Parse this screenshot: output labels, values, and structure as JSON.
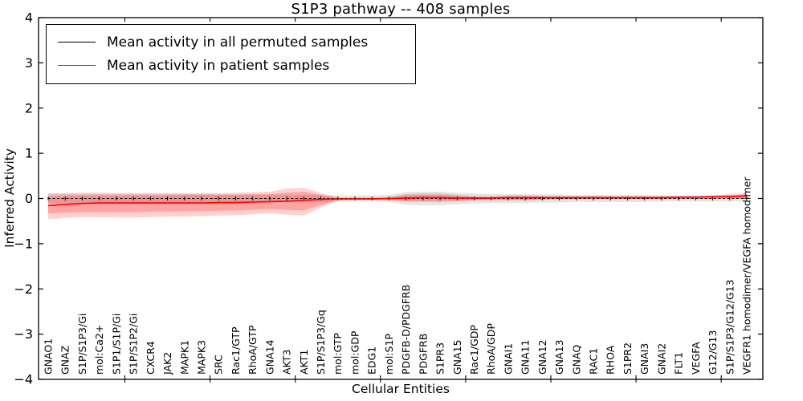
{
  "chart_data": {
    "type": "line",
    "title": "S1P3 pathway -- 408 samples",
    "xlabel": "Cellular Entities",
    "ylabel": "Inferred Activity",
    "ylim": [
      -4,
      4
    ],
    "yticks": [
      -4,
      -3,
      -2,
      -1,
      0,
      1,
      2,
      3,
      4
    ],
    "grid": false,
    "legend_position": "upper left",
    "categories": [
      "GNAO1",
      "GNAZ",
      "S1P/S1P3/Gi",
      "mol:Ca2+",
      "S1P1/S1P/Gi",
      "S1P/S1P2/Gi",
      "CXCR4",
      "JAK2",
      "MAPK1",
      "MAPK3",
      "SRC",
      "Rac1/GTP",
      "RhoA/GTP",
      "GNA14",
      "AKT3",
      "AKT1",
      "S1P/S1P3/Gq",
      "mol:GTP",
      "mol:GDP",
      "EDG1",
      "mol:S1P",
      "PDGFB-D/PDGFRB",
      "PDGFRB",
      "S1PR3",
      "GNA15",
      "Rac1/GDP",
      "RhoA/GDP",
      "GNAI1",
      "GNA11",
      "GNA12",
      "GNA13",
      "GNAQ",
      "RAC1",
      "RHOA",
      "S1PR2",
      "GNAI3",
      "GNAI2",
      "FLT1",
      "VEGFA",
      "G12/G13",
      "S1P/S1P3/G12/G13",
      "VEGFR1 homodimer/VEGFA homodimer"
    ],
    "series": [
      {
        "name": "permuted",
        "label": "Mean activity in all permuted samples",
        "color": "#000000",
        "band_color": "#999999",
        "mean": [
          0,
          0,
          0,
          0,
          0,
          0,
          0,
          0,
          0,
          0,
          0,
          0,
          0,
          0,
          0,
          0,
          0,
          0,
          0,
          0,
          0,
          0,
          0,
          0,
          0,
          0,
          0,
          0,
          0,
          0,
          0,
          0,
          0,
          0,
          0,
          0,
          0,
          0,
          0,
          0,
          0,
          0
        ],
        "band_half_width": [
          0.1,
          0.1,
          0.1,
          0.1,
          0.1,
          0.1,
          0.1,
          0.1,
          0.1,
          0.1,
          0.09,
          0.09,
          0.09,
          0.09,
          0.08,
          0.08,
          0.08,
          0.07,
          0.07,
          0.07,
          0.08,
          0.14,
          0.15,
          0.15,
          0.13,
          0.11,
          0.1,
          0.1,
          0.1,
          0.09,
          0.09,
          0.08,
          0.08,
          0.08,
          0.08,
          0.08,
          0.07,
          0.07,
          0.07,
          0.07,
          0.07,
          0.06
        ]
      },
      {
        "name": "patient",
        "label": "Mean activity in patient samples",
        "color": "#ff0000",
        "band_color": "#ff0000",
        "mean": [
          -0.16,
          -0.13,
          -0.11,
          -0.1,
          -0.1,
          -0.1,
          -0.1,
          -0.1,
          -0.1,
          -0.1,
          -0.09,
          -0.09,
          -0.08,
          -0.07,
          -0.06,
          -0.04,
          -0.02,
          -0.01,
          -0.01,
          -0.01,
          0.0,
          0.01,
          0.02,
          0.02,
          0.01,
          0.01,
          0.01,
          0.02,
          0.02,
          0.02,
          0.02,
          0.02,
          0.02,
          0.02,
          0.02,
          0.02,
          0.02,
          0.03,
          0.03,
          0.04,
          0.04,
          0.06
        ],
        "band_outer_high": [
          0.12,
          0.12,
          0.13,
          0.13,
          0.12,
          0.12,
          0.12,
          0.12,
          0.12,
          0.12,
          0.12,
          0.13,
          0.14,
          0.15,
          0.22,
          0.24,
          0.12,
          0.02,
          0.02,
          0.02,
          0.03,
          0.1,
          0.11,
          0.11,
          0.08,
          0.05,
          0.05,
          0.07,
          0.07,
          0.06,
          0.05,
          0.05,
          0.05,
          0.05,
          0.05,
          0.05,
          0.05,
          0.05,
          0.05,
          0.06,
          0.1,
          0.12
        ],
        "band_outer_low": [
          -0.46,
          -0.43,
          -0.41,
          -0.41,
          -0.42,
          -0.42,
          -0.41,
          -0.4,
          -0.4,
          -0.39,
          -0.38,
          -0.37,
          -0.35,
          -0.33,
          -0.36,
          -0.38,
          -0.2,
          -0.04,
          -0.03,
          -0.03,
          -0.04,
          -0.07,
          -0.08,
          -0.08,
          -0.06,
          -0.04,
          -0.03,
          -0.04,
          -0.04,
          -0.03,
          -0.02,
          -0.01,
          -0.01,
          -0.01,
          -0.01,
          -0.01,
          -0.01,
          -0.01,
          -0.01,
          -0.01,
          0.0,
          0.0
        ],
        "band_inner_high": [
          0.05,
          0.06,
          0.07,
          0.07,
          0.07,
          0.07,
          0.07,
          0.07,
          0.08,
          0.08,
          0.08,
          0.08,
          0.09,
          0.09,
          0.13,
          0.15,
          0.08,
          0.01,
          0.01,
          0.01,
          0.02,
          0.07,
          0.08,
          0.08,
          0.06,
          0.04,
          0.03,
          0.05,
          0.05,
          0.04,
          0.04,
          0.04,
          0.04,
          0.04,
          0.04,
          0.04,
          0.04,
          0.04,
          0.04,
          0.05,
          0.07,
          0.09
        ],
        "band_inner_low": [
          -0.33,
          -0.31,
          -0.3,
          -0.3,
          -0.3,
          -0.3,
          -0.29,
          -0.29,
          -0.28,
          -0.28,
          -0.27,
          -0.26,
          -0.25,
          -0.23,
          -0.25,
          -0.26,
          -0.14,
          -0.03,
          -0.02,
          -0.02,
          -0.02,
          -0.05,
          -0.05,
          -0.05,
          -0.04,
          -0.03,
          -0.02,
          -0.03,
          -0.03,
          -0.02,
          -0.01,
          -0.01,
          -0.01,
          -0.01,
          -0.01,
          -0.01,
          -0.01,
          -0.01,
          -0.01,
          0.0,
          0.0,
          0.01
        ]
      }
    ]
  }
}
